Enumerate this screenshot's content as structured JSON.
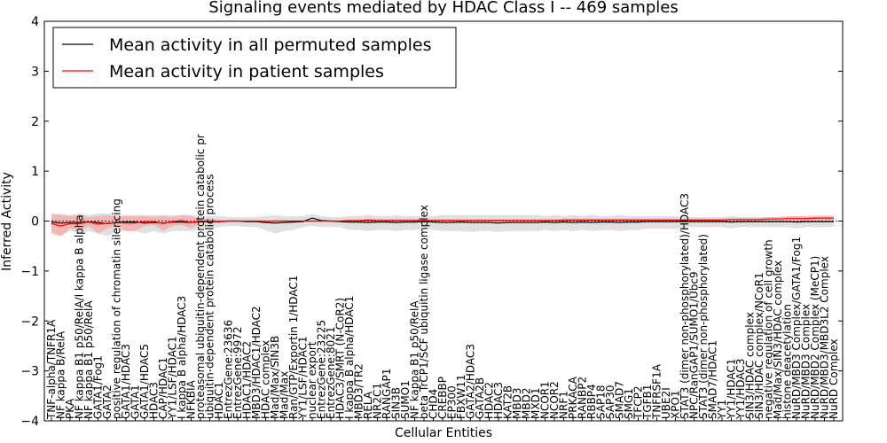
{
  "chart_data": {
    "type": "line",
    "title": "Signaling events mediated by HDAC Class I -- 469 samples",
    "xlabel": "Cellular Entities",
    "ylabel": "Inferred Activity",
    "ylim": [
      -4,
      4
    ],
    "yticks": [
      "−4",
      "−3",
      "−2",
      "−1",
      "0",
      "1",
      "2",
      "3",
      "4"
    ],
    "grid": false,
    "legend_position": "top-left",
    "legend": [
      "Mean activity in all permuted samples",
      "Mean activity in patient samples"
    ],
    "colors": {
      "permuted": "#000000",
      "patient": "#ff0000",
      "permuted_band": "#cccccc",
      "patient_band": "#ff9999"
    },
    "categories": [
      "TNF-alpha/TNFR1A",
      "NF kappa B/RelA",
      "PKA",
      "NF kappa B1 p50/RelA/I kappa B alpha",
      "NF kappa B1 p50/RelA",
      "GATA1/Fog1",
      "GATA2",
      "positive regulation of chromatin silencing",
      "GATA1/HDAC3",
      "GATA1",
      "GATA1/HDAC5",
      "HDAC3",
      "CAP/HDAC1",
      "YY1/LSF/HDAC1",
      "I kappa B alpha/HDAC3",
      "NFKBIA",
      "proteasomal ubiquitin-dependent protein catabolic pr",
      "ubiquitin-dependent protein catabolic process",
      "HDAC1",
      "EntrezGene:23636",
      "EntrezGene:9972",
      "HDAC1/HDAC2",
      "MBD3/HDAC1/HDAC2",
      "HDAC complex",
      "Mad/Max/SIN3B",
      "Mad/Max",
      "Ran/GTP/Exportin 1/HDAC1",
      "YY1/LSF/HDAC1",
      "nuclear export",
      "EntrezGene:23225",
      "EntrezGene:8021",
      "HDAC3/SMRT (N-CoR2)",
      "I kappa B alpha/HDAC1",
      "MBD3/TR2",
      "RELA",
      "NR2C1",
      "RANGAP1",
      "SIN3B",
      "SUMO1",
      "NF kappa B1 p50/RelA",
      "beta TrCP1/SCF ubiquitin ligase complex",
      "CHD4",
      "CREBBP",
      "EP300",
      "FBXW11",
      "GATA2/HDAC3",
      "GATA2B",
      "HDAC2",
      "HDAC3",
      "KAT2B",
      "MBD3",
      "MBD2",
      "MXD1",
      "NCOR1",
      "NCOR2",
      "NRF1",
      "PRKACA",
      "RANBP2",
      "RBBP4",
      "SAP18",
      "SAP30",
      "SMAD7",
      "SMG1",
      "TFCP2",
      "TGFB1",
      "TNFRSF1A",
      "UBE2I",
      "XPO1",
      "STAT3 (dimer non-phosphorylated)/HDAC3",
      "NPC/RanGAP1/SUMO1/Ubc9",
      "STAT3 (dimer non-phosphorylated)",
      "SMAD7/HDAC1",
      "YY1",
      "YY1/HDAC1",
      "YY1/HDAC3",
      "SIN3/HDAC complex",
      "SIN3/HDAC complex/NCoR1",
      "negative regulation of cell growth",
      "Mad/Max/SIN3/HDAC complex",
      "histone deacetylation",
      "NuRD/MBD3 Complex/GATA1/Fog1",
      "NuRD/MBD3 Complex",
      "NuRD/MBD2 Complex (MeCP1)",
      "NuRD/MBD3/MBD3L2 Complex",
      "NuRD Complex"
    ],
    "series": [
      {
        "name": "Mean activity in all permuted samples",
        "values": [
          -0.02,
          -0.04,
          -0.03,
          -0.03,
          -0.02,
          -0.03,
          -0.05,
          -0.03,
          -0.02,
          -0.02,
          -0.04,
          -0.03,
          -0.04,
          -0.02,
          -0.02,
          -0.03,
          -0.01,
          -0.01,
          -0.01,
          0.0,
          0.0,
          -0.01,
          -0.01,
          -0.03,
          -0.04,
          -0.03,
          -0.02,
          -0.01,
          0.06,
          0.01,
          0.0,
          -0.01,
          -0.02,
          -0.02,
          -0.03,
          -0.02,
          -0.02,
          -0.03,
          -0.02,
          -0.02,
          -0.01,
          -0.02,
          -0.03,
          -0.03,
          -0.02,
          -0.03,
          -0.03,
          -0.03,
          -0.04,
          -0.03,
          -0.03,
          -0.03,
          -0.03,
          -0.02,
          -0.03,
          -0.02,
          -0.03,
          -0.02,
          -0.03,
          -0.02,
          -0.02,
          -0.03,
          -0.02,
          -0.02,
          -0.01,
          -0.01,
          -0.01,
          -0.01,
          -0.01,
          -0.01,
          -0.01,
          -0.01,
          -0.01,
          -0.02,
          -0.01,
          -0.01,
          -0.01,
          -0.01,
          -0.01,
          -0.01,
          -0.02,
          -0.01,
          -0.01,
          -0.01,
          -0.01
        ]
      },
      {
        "name": "Mean activity in patient samples",
        "values": [
          -0.05,
          -0.1,
          -0.05,
          -0.05,
          -0.02,
          -0.06,
          -0.04,
          -0.03,
          -0.04,
          -0.04,
          -0.01,
          -0.01,
          -0.05,
          -0.01,
          0.01,
          -0.03,
          0.0,
          0.0,
          -0.01,
          0.0,
          0.0,
          0.0,
          0.0,
          -0.01,
          0.0,
          0.0,
          0.0,
          0.0,
          0.0,
          0.0,
          0.0,
          0.0,
          0.01,
          0.01,
          0.02,
          0.01,
          0.01,
          0.01,
          0.01,
          0.01,
          0.01,
          0.01,
          0.01,
          0.01,
          0.01,
          0.01,
          0.01,
          0.01,
          0.01,
          0.01,
          0.01,
          0.01,
          0.01,
          0.01,
          0.01,
          0.02,
          0.02,
          0.02,
          0.02,
          0.02,
          0.02,
          0.02,
          0.02,
          0.02,
          0.02,
          0.02,
          0.02,
          0.02,
          0.02,
          0.02,
          0.02,
          0.02,
          0.02,
          0.03,
          0.03,
          0.03,
          0.03,
          0.04,
          0.04,
          0.05,
          0.05,
          0.05,
          0.06,
          0.06,
          0.06
        ]
      }
    ],
    "bands": {
      "permuted": {
        "lower": [
          -0.2,
          -0.3,
          -0.2,
          -0.25,
          -0.2,
          -0.25,
          -0.3,
          -0.2,
          -0.2,
          -0.2,
          -0.25,
          -0.2,
          -0.25,
          -0.2,
          -0.2,
          -0.2,
          -0.15,
          -0.15,
          -0.12,
          -0.1,
          -0.1,
          -0.12,
          -0.12,
          -0.18,
          -0.25,
          -0.2,
          -0.18,
          -0.12,
          -0.1,
          -0.12,
          -0.12,
          -0.12,
          -0.18,
          -0.18,
          -0.2,
          -0.18,
          -0.18,
          -0.2,
          -0.18,
          -0.18,
          -0.15,
          -0.18,
          -0.2,
          -0.2,
          -0.2,
          -0.22,
          -0.2,
          -0.2,
          -0.22,
          -0.2,
          -0.2,
          -0.2,
          -0.2,
          -0.18,
          -0.2,
          -0.18,
          -0.2,
          -0.18,
          -0.2,
          -0.18,
          -0.18,
          -0.2,
          -0.18,
          -0.18,
          -0.15,
          -0.15,
          -0.15,
          -0.15,
          -0.12,
          -0.12,
          -0.12,
          -0.12,
          -0.12,
          -0.15,
          -0.12,
          -0.12,
          -0.12,
          -0.12,
          -0.12,
          -0.12,
          -0.15,
          -0.12,
          -0.12,
          -0.12,
          -0.12
        ],
        "upper": [
          0.12,
          0.15,
          0.12,
          0.15,
          0.12,
          0.15,
          0.15,
          0.12,
          0.12,
          0.12,
          0.12,
          0.12,
          0.12,
          0.12,
          0.12,
          0.12,
          0.1,
          0.1,
          0.1,
          0.08,
          0.08,
          0.08,
          0.08,
          0.1,
          0.12,
          0.1,
          0.1,
          0.1,
          0.14,
          0.1,
          0.08,
          0.08,
          0.1,
          0.1,
          0.12,
          0.1,
          0.1,
          0.12,
          0.1,
          0.1,
          0.1,
          0.1,
          0.12,
          0.12,
          0.12,
          0.12,
          0.12,
          0.12,
          0.12,
          0.12,
          0.12,
          0.12,
          0.12,
          0.1,
          0.12,
          0.1,
          0.12,
          0.1,
          0.12,
          0.1,
          0.1,
          0.12,
          0.1,
          0.1,
          0.1,
          0.1,
          0.1,
          0.1,
          0.08,
          0.08,
          0.08,
          0.08,
          0.08,
          0.1,
          0.08,
          0.08,
          0.08,
          0.08,
          0.08,
          0.08,
          0.1,
          0.08,
          0.08,
          0.08,
          0.08
        ]
      },
      "patient": {
        "lower": [
          -0.25,
          -0.3,
          -0.15,
          -0.2,
          -0.1,
          -0.25,
          -0.15,
          -0.1,
          -0.2,
          -0.2,
          -0.1,
          -0.08,
          -0.2,
          -0.1,
          -0.08,
          -0.15,
          -0.05,
          -0.05,
          -0.04,
          -0.02,
          -0.02,
          -0.02,
          -0.02,
          -0.04,
          -0.02,
          -0.02,
          -0.02,
          -0.02,
          -0.02,
          -0.02,
          -0.02,
          -0.02,
          -0.02,
          -0.02,
          -0.02,
          -0.02,
          -0.02,
          -0.02,
          -0.02,
          -0.02,
          -0.02,
          -0.02,
          -0.02,
          -0.02,
          -0.02,
          -0.02,
          -0.02,
          -0.02,
          -0.02,
          -0.02,
          -0.02,
          -0.02,
          -0.02,
          -0.02,
          -0.02,
          -0.01,
          -0.01,
          -0.01,
          -0.01,
          -0.01,
          -0.01,
          -0.01,
          -0.01,
          -0.01,
          -0.01,
          -0.01,
          -0.01,
          -0.01,
          -0.01,
          -0.01,
          -0.01,
          -0.01,
          -0.01,
          0.0,
          0.0,
          0.0,
          0.0,
          0.01,
          0.01,
          0.01,
          0.01,
          0.01,
          0.02,
          0.02,
          0.02
        ],
        "upper": [
          0.15,
          0.12,
          0.1,
          0.12,
          0.08,
          0.1,
          0.12,
          0.08,
          0.1,
          0.1,
          0.1,
          0.08,
          0.1,
          0.08,
          0.12,
          0.1,
          0.05,
          0.05,
          0.03,
          0.02,
          0.02,
          0.02,
          0.02,
          0.02,
          0.02,
          0.02,
          0.02,
          0.02,
          0.02,
          0.02,
          0.02,
          0.02,
          0.03,
          0.03,
          0.05,
          0.04,
          0.04,
          0.04,
          0.04,
          0.04,
          0.04,
          0.04,
          0.04,
          0.04,
          0.04,
          0.04,
          0.04,
          0.04,
          0.04,
          0.04,
          0.04,
          0.04,
          0.04,
          0.04,
          0.04,
          0.05,
          0.05,
          0.05,
          0.05,
          0.05,
          0.05,
          0.05,
          0.05,
          0.05,
          0.05,
          0.05,
          0.05,
          0.05,
          0.05,
          0.05,
          0.05,
          0.05,
          0.05,
          0.06,
          0.06,
          0.06,
          0.06,
          0.08,
          0.08,
          0.1,
          0.1,
          0.1,
          0.11,
          0.11,
          0.11
        ]
      }
    }
  }
}
